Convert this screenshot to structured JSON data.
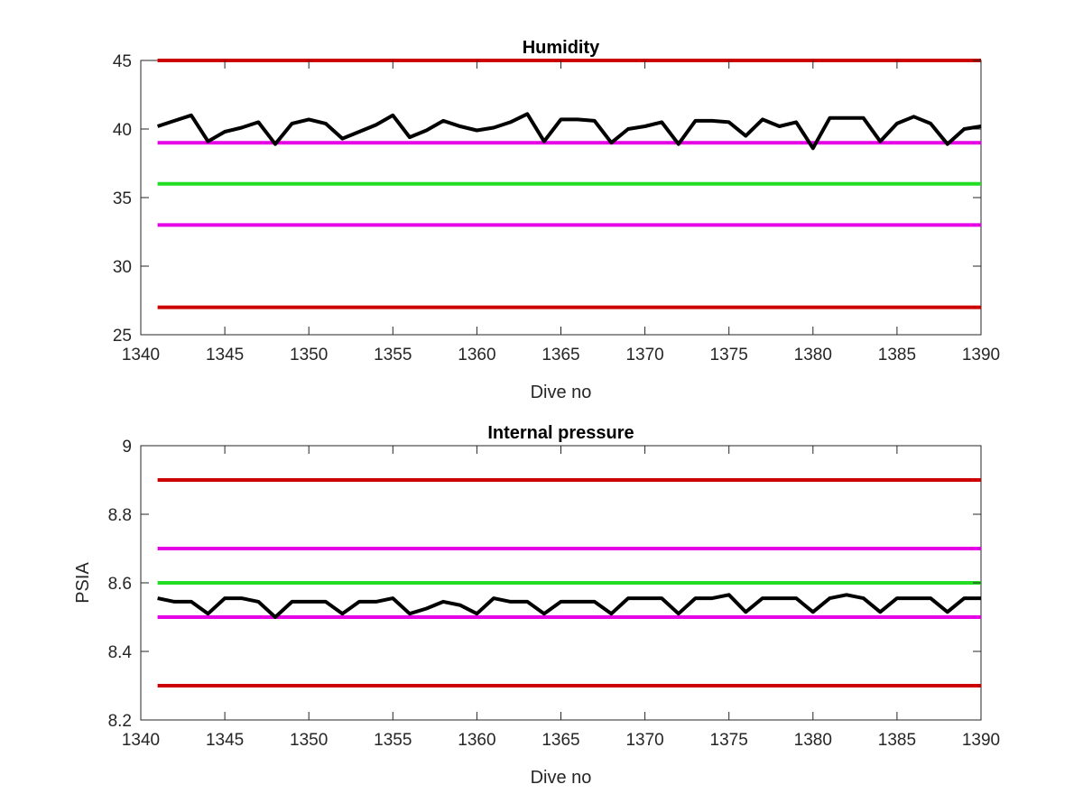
{
  "chart_data": [
    {
      "type": "line",
      "title": "Humidity",
      "xlabel": "Dive no",
      "ylabel": "",
      "xlim": [
        1340,
        1390
      ],
      "ylim": [
        25,
        45
      ],
      "xticks": [
        "1340",
        "1345",
        "1350",
        "1355",
        "1360",
        "1365",
        "1370",
        "1375",
        "1380",
        "1385",
        "1390"
      ],
      "yticks": [
        "25",
        "30",
        "35",
        "40",
        "45"
      ],
      "grid": false,
      "thresholds": [
        {
          "value": 45,
          "color": "#cc0000"
        },
        {
          "value": 39,
          "color": "#e600e6"
        },
        {
          "value": 36,
          "color": "#22dd22"
        },
        {
          "value": 33,
          "color": "#e600e6"
        },
        {
          "value": 27,
          "color": "#cc0000"
        }
      ],
      "series": [
        {
          "color": "#000000",
          "x": [
            1341,
            1342,
            1343,
            1344,
            1345,
            1346,
            1347,
            1348,
            1349,
            1350,
            1351,
            1352,
            1353,
            1354,
            1355,
            1356,
            1357,
            1358,
            1359,
            1360,
            1361,
            1362,
            1363,
            1364,
            1365,
            1366,
            1367,
            1368,
            1369,
            1370,
            1371,
            1372,
            1373,
            1374,
            1375,
            1376,
            1377,
            1378,
            1379,
            1380,
            1381,
            1382,
            1383,
            1384,
            1385,
            1386,
            1387,
            1388,
            1389,
            1390
          ],
          "y": [
            40.2,
            40.6,
            41.0,
            39.1,
            39.8,
            40.1,
            40.5,
            38.9,
            40.4,
            40.7,
            40.4,
            39.3,
            39.8,
            40.3,
            41.0,
            39.4,
            39.9,
            40.6,
            40.2,
            39.9,
            40.1,
            40.5,
            41.1,
            39.1,
            40.7,
            40.7,
            40.6,
            39.0,
            40.0,
            40.2,
            40.5,
            38.9,
            40.6,
            40.6,
            40.5,
            39.5,
            40.7,
            40.2,
            40.5,
            38.6,
            40.8,
            40.8,
            40.8,
            39.1,
            40.4,
            40.9,
            40.4,
            38.9,
            40.0,
            40.2
          ]
        }
      ]
    },
    {
      "type": "line",
      "title": "Internal pressure",
      "xlabel": "Dive no",
      "ylabel": "PSIA",
      "xlim": [
        1340,
        1390
      ],
      "ylim": [
        8.2,
        9.0
      ],
      "xticks": [
        "1340",
        "1345",
        "1350",
        "1355",
        "1360",
        "1365",
        "1370",
        "1375",
        "1380",
        "1385",
        "1390"
      ],
      "yticks": [
        "8.2",
        "8.4",
        "8.6",
        "8.8",
        "9"
      ],
      "grid": false,
      "thresholds": [
        {
          "value": 8.9,
          "color": "#cc0000"
        },
        {
          "value": 8.7,
          "color": "#e600e6"
        },
        {
          "value": 8.6,
          "color": "#22dd22"
        },
        {
          "value": 8.5,
          "color": "#e600e6"
        },
        {
          "value": 8.3,
          "color": "#cc0000"
        }
      ],
      "series": [
        {
          "color": "#000000",
          "x": [
            1341,
            1342,
            1343,
            1344,
            1345,
            1346,
            1347,
            1348,
            1349,
            1350,
            1351,
            1352,
            1353,
            1354,
            1355,
            1356,
            1357,
            1358,
            1359,
            1360,
            1361,
            1362,
            1363,
            1364,
            1365,
            1366,
            1367,
            1368,
            1369,
            1370,
            1371,
            1372,
            1373,
            1374,
            1375,
            1376,
            1377,
            1378,
            1379,
            1380,
            1381,
            1382,
            1383,
            1384,
            1385,
            1386,
            1387,
            1388,
            1389,
            1390
          ],
          "y": [
            8.555,
            8.545,
            8.545,
            8.51,
            8.555,
            8.555,
            8.545,
            8.5,
            8.545,
            8.545,
            8.545,
            8.51,
            8.545,
            8.545,
            8.555,
            8.51,
            8.525,
            8.545,
            8.535,
            8.51,
            8.555,
            8.545,
            8.545,
            8.51,
            8.545,
            8.545,
            8.545,
            8.51,
            8.555,
            8.555,
            8.555,
            8.51,
            8.555,
            8.555,
            8.565,
            8.515,
            8.555,
            8.555,
            8.555,
            8.515,
            8.555,
            8.565,
            8.555,
            8.515,
            8.555,
            8.555,
            8.555,
            8.515,
            8.555,
            8.555
          ]
        }
      ]
    }
  ]
}
